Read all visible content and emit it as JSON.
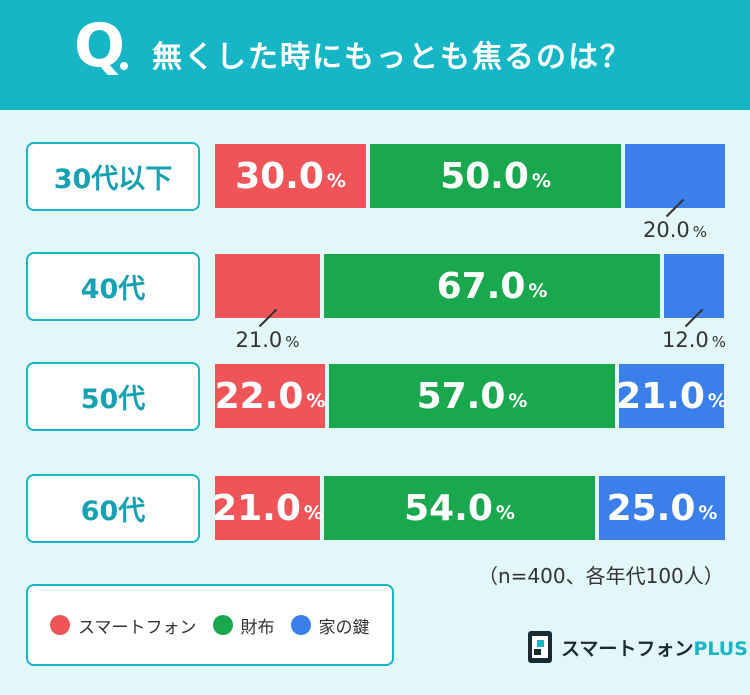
{
  "question": {
    "prefix": "Q",
    "text": "無くした時にもっとも焦るのは？"
  },
  "note": "（n=400、各年代100人）",
  "legend": [
    {
      "label": "スマートフォン",
      "color": "#ef5558"
    },
    {
      "label": "財布",
      "color": "#19a84e"
    },
    {
      "label": "家の鍵",
      "color": "#3a7fea"
    }
  ],
  "logo": {
    "main": "スマートフォン",
    "plus": "PLUS"
  },
  "chart_data": {
    "type": "bar",
    "orientation": "horizontal-stacked-100",
    "categories": [
      "30代以下",
      "40代",
      "50代",
      "60代"
    ],
    "series": [
      {
        "name": "スマートフォン",
        "color": "#ef5558",
        "values": [
          30.0,
          21.0,
          22.0,
          21.0
        ]
      },
      {
        "name": "財布",
        "color": "#19a84e",
        "values": [
          50.0,
          67.0,
          57.0,
          54.0
        ]
      },
      {
        "name": "家の鍵",
        "color": "#3a7fea",
        "values": [
          20.0,
          12.0,
          21.0,
          25.0
        ]
      }
    ],
    "labels": [
      [
        {
          "num": "30.0",
          "unit": "%"
        },
        {
          "num": "50.0",
          "unit": "%"
        },
        {
          "num": "20.0",
          "unit": "%"
        }
      ],
      [
        {
          "num": "21.0",
          "unit": "%"
        },
        {
          "num": "67.0",
          "unit": "%"
        },
        {
          "num": "12.0",
          "unit": "%"
        }
      ],
      [
        {
          "num": "22.0",
          "unit": "%"
        },
        {
          "num": "57.0",
          "unit": "%"
        },
        {
          "num": "21.0",
          "unit": "%"
        }
      ],
      [
        {
          "num": "21.0",
          "unit": "%"
        },
        {
          "num": "54.0",
          "unit": "%"
        },
        {
          "num": "25.0",
          "unit": "%"
        }
      ]
    ],
    "outside_labels": [
      [
        false,
        false,
        true
      ],
      [
        true,
        false,
        true
      ],
      [
        false,
        false,
        false
      ],
      [
        false,
        false,
        false
      ]
    ]
  }
}
